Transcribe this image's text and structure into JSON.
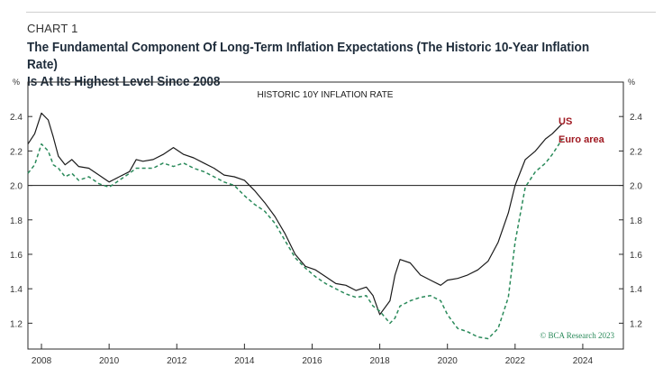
{
  "header": {
    "chart_number": "CHART 1",
    "title_line1": "The Fundamental Component Of Long-Term Inflation Expectations (The Historic 10-Year Inflation Rate)",
    "title_line2": "Is At Its Highest Level Since 2008"
  },
  "chart_data": {
    "type": "line",
    "inner_title": "HISTORIC 10Y INFLATION RATE",
    "left_unit": "%",
    "right_unit": "%",
    "ylim": [
      1.05,
      2.6
    ],
    "xlim": [
      2007.6,
      2025.2
    ],
    "y_ticks": [
      1.2,
      1.4,
      1.6,
      1.8,
      2.0,
      2.2,
      2.4
    ],
    "y_tick_labels": [
      "1.2",
      "1.4",
      "1.6",
      "1.8",
      "2.0",
      "2.2",
      "2.4"
    ],
    "x_ticks": [
      2008,
      2010,
      2012,
      2014,
      2016,
      2018,
      2020,
      2022,
      2024
    ],
    "x_tick_labels": [
      "2008",
      "2010",
      "2012",
      "2014",
      "2016",
      "2018",
      "2020",
      "2022",
      "2024"
    ],
    "reference_line": 2.0,
    "source": "© BCA Research 2023",
    "series": [
      {
        "name": "US",
        "color": "#1a1a1a",
        "style": "solid",
        "x": [
          2007.6,
          2007.8,
          2008.0,
          2008.2,
          2008.35,
          2008.5,
          2008.7,
          2008.9,
          2009.1,
          2009.4,
          2009.7,
          2010.0,
          2010.3,
          2010.6,
          2010.8,
          2011.0,
          2011.3,
          2011.6,
          2011.9,
          2012.2,
          2012.5,
          2012.8,
          2013.1,
          2013.4,
          2013.7,
          2014.0,
          2014.3,
          2014.6,
          2014.9,
          2015.2,
          2015.5,
          2015.8,
          2016.1,
          2016.4,
          2016.7,
          2017.0,
          2017.3,
          2017.6,
          2017.8,
          2018.0,
          2018.3,
          2018.45,
          2018.6,
          2018.9,
          2019.2,
          2019.5,
          2019.8,
          2020.0,
          2020.3,
          2020.6,
          2020.9,
          2021.2,
          2021.5,
          2021.8,
          2022.0,
          2022.3,
          2022.6,
          2022.9,
          2023.1,
          2023.4
        ],
        "y": [
          2.24,
          2.3,
          2.42,
          2.38,
          2.28,
          2.17,
          2.12,
          2.15,
          2.11,
          2.1,
          2.06,
          2.02,
          2.05,
          2.08,
          2.15,
          2.14,
          2.15,
          2.18,
          2.22,
          2.18,
          2.16,
          2.13,
          2.1,
          2.06,
          2.05,
          2.03,
          1.97,
          1.9,
          1.82,
          1.72,
          1.6,
          1.53,
          1.51,
          1.47,
          1.43,
          1.42,
          1.39,
          1.41,
          1.36,
          1.25,
          1.33,
          1.48,
          1.57,
          1.55,
          1.48,
          1.45,
          1.42,
          1.45,
          1.46,
          1.48,
          1.51,
          1.56,
          1.67,
          1.84,
          2.0,
          2.15,
          2.2,
          2.27,
          2.3,
          2.36
        ]
      },
      {
        "name": "Euro area",
        "color": "#2a8a5a",
        "style": "dashed",
        "x": [
          2007.6,
          2007.8,
          2008.0,
          2008.2,
          2008.35,
          2008.5,
          2008.7,
          2008.9,
          2009.1,
          2009.4,
          2009.7,
          2010.0,
          2010.3,
          2010.6,
          2010.8,
          2011.0,
          2011.3,
          2011.6,
          2011.9,
          2012.2,
          2012.5,
          2012.8,
          2013.1,
          2013.4,
          2013.7,
          2014.0,
          2014.3,
          2014.6,
          2014.9,
          2015.2,
          2015.5,
          2015.8,
          2016.1,
          2016.4,
          2016.7,
          2017.0,
          2017.3,
          2017.6,
          2017.8,
          2018.0,
          2018.3,
          2018.45,
          2018.6,
          2018.9,
          2019.2,
          2019.5,
          2019.8,
          2020.0,
          2020.3,
          2020.6,
          2020.9,
          2021.2,
          2021.5,
          2021.8,
          2022.0,
          2022.3,
          2022.6,
          2022.9,
          2023.1,
          2023.4
        ],
        "y": [
          2.07,
          2.12,
          2.24,
          2.2,
          2.12,
          2.1,
          2.05,
          2.07,
          2.03,
          2.05,
          2.01,
          1.99,
          2.03,
          2.07,
          2.1,
          2.1,
          2.1,
          2.13,
          2.11,
          2.13,
          2.1,
          2.08,
          2.05,
          2.02,
          2.0,
          1.94,
          1.89,
          1.85,
          1.78,
          1.68,
          1.58,
          1.52,
          1.47,
          1.43,
          1.4,
          1.37,
          1.35,
          1.36,
          1.3,
          1.27,
          1.2,
          1.23,
          1.3,
          1.33,
          1.35,
          1.36,
          1.33,
          1.25,
          1.17,
          1.15,
          1.12,
          1.11,
          1.17,
          1.35,
          1.67,
          1.99,
          2.08,
          2.13,
          2.18,
          2.27
        ]
      }
    ]
  }
}
